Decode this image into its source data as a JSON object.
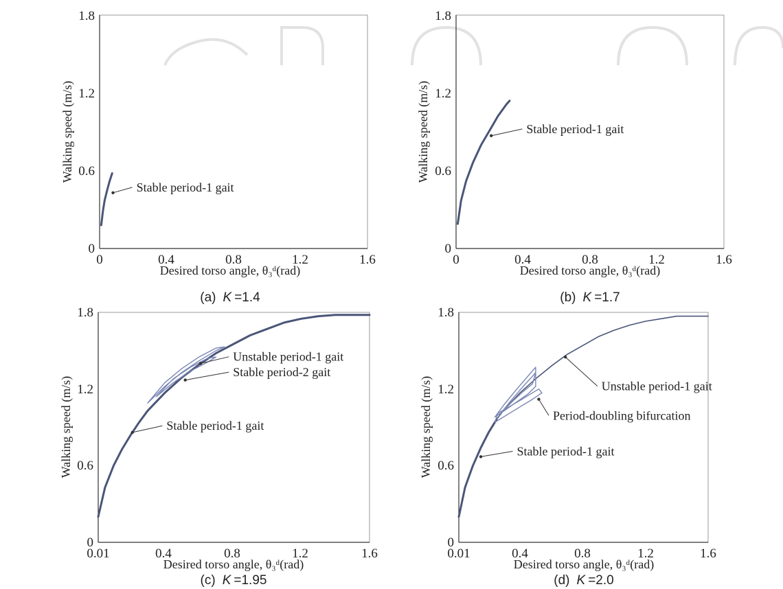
{
  "colors": {
    "curve": "#4a5578",
    "curve_light": "#7a86b4",
    "text": "#222222",
    "frame": "#9a9a9a",
    "watermark": "#e2e2e2"
  },
  "chart_data": [
    {
      "type": "line",
      "panel": "a",
      "caption_prefix": "(a)",
      "caption_k": "K",
      "caption_value": "=1.4",
      "xlabel": "Desired torso angle, θ₃ᵈ(rad)",
      "ylabel": "Walking speed (m/s)",
      "xlim": [
        0,
        1.6
      ],
      "ylim": [
        0,
        1.8
      ],
      "xticks": [
        0,
        0.4,
        0.8,
        1.2,
        1.6
      ],
      "xtick_labels": [
        "0",
        "0.4",
        "0.8",
        "1.2",
        "1.6"
      ],
      "yticks": [
        0,
        0.6,
        1.2,
        1.8
      ],
      "ytick_labels": [
        "0",
        "0.6",
        "1.2",
        "1.8"
      ],
      "series": [
        {
          "style": "stable",
          "x": [
            0.01,
            0.02,
            0.03,
            0.045,
            0.06,
            0.075
          ],
          "y": [
            0.18,
            0.29,
            0.37,
            0.45,
            0.52,
            0.58
          ]
        }
      ],
      "annotations": [
        {
          "text": "Stable period-1 gait",
          "tip": [
            0.08,
            0.43
          ],
          "text_pos": [
            0.22,
            0.44
          ]
        }
      ]
    },
    {
      "type": "line",
      "panel": "b",
      "caption_prefix": "(b)",
      "caption_k": "K",
      "caption_value": "=1.7",
      "xlabel": "Desired torso angle, θ₃ᵈ(rad)",
      "ylabel": "Walking speed (m/s)",
      "xlim": [
        0,
        1.6
      ],
      "ylim": [
        0,
        1.8
      ],
      "xticks": [
        0,
        0.4,
        0.8,
        1.2,
        1.6
      ],
      "xtick_labels": [
        "0",
        "0.4",
        "0.8",
        "1.2",
        "1.6"
      ],
      "yticks": [
        0,
        0.6,
        1.2,
        1.8
      ],
      "ytick_labels": [
        "0",
        "0.6",
        "1.2",
        "1.8"
      ],
      "series": [
        {
          "style": "stable",
          "x": [
            0.01,
            0.03,
            0.06,
            0.1,
            0.15,
            0.2,
            0.25,
            0.3,
            0.32
          ],
          "y": [
            0.19,
            0.37,
            0.52,
            0.66,
            0.8,
            0.91,
            1.02,
            1.11,
            1.14
          ]
        }
      ],
      "annotations": [
        {
          "text": "Stable period-1 gait",
          "tip": [
            0.21,
            0.87
          ],
          "text_pos": [
            0.42,
            0.89
          ]
        }
      ]
    },
    {
      "type": "line",
      "panel": "c",
      "caption_prefix": "(c)",
      "caption_k": "K",
      "caption_value": "=1.95",
      "xlabel": "Desired torso angle, θ₃ᵈ(rad)",
      "ylabel": "Walking speed (m/s)",
      "xlim": [
        0.01,
        1.6
      ],
      "ylim": [
        0,
        1.8
      ],
      "xticks": [
        0.01,
        0.4,
        0.8,
        1.2,
        1.6
      ],
      "xtick_labels": [
        "0.01",
        "0.4",
        "0.8",
        "1.2",
        "1.6"
      ],
      "yticks": [
        0,
        0.6,
        1.2,
        1.8
      ],
      "ytick_labels": [
        "0",
        "0.6",
        "1.2",
        "1.8"
      ],
      "series": [
        {
          "style": "stable",
          "x": [
            0.01,
            0.05,
            0.1,
            0.15,
            0.2,
            0.25,
            0.3,
            0.4,
            0.5,
            0.6,
            0.7,
            0.8,
            0.9,
            1.0,
            1.1,
            1.2,
            1.3,
            1.4,
            1.5,
            1.6
          ],
          "y": [
            0.2,
            0.43,
            0.6,
            0.73,
            0.84,
            0.94,
            1.03,
            1.17,
            1.29,
            1.39,
            1.48,
            1.55,
            1.62,
            1.67,
            1.72,
            1.75,
            1.77,
            1.78,
            1.78,
            1.78
          ]
        },
        {
          "style": "loop",
          "x": [
            0.3,
            0.4,
            0.5,
            0.6,
            0.7,
            0.75,
            0.7,
            0.6,
            0.5,
            0.4,
            0.3
          ],
          "y": [
            1.09,
            1.22,
            1.33,
            1.42,
            1.5,
            1.53,
            1.52,
            1.45,
            1.36,
            1.25,
            1.09
          ]
        },
        {
          "style": "loop",
          "x": [
            0.35,
            0.45,
            0.55,
            0.65,
            0.7,
            0.65,
            0.55,
            0.45,
            0.35
          ],
          "y": [
            1.14,
            1.25,
            1.34,
            1.41,
            1.45,
            1.44,
            1.37,
            1.28,
            1.14
          ]
        }
      ],
      "annotations": [
        {
          "text": "Unstable period-1 gait",
          "tip": [
            0.61,
            1.4
          ],
          "text_pos": [
            0.8,
            1.42
          ]
        },
        {
          "text": "Stable period-2 gait",
          "tip": [
            0.52,
            1.27
          ],
          "text_pos": [
            0.8,
            1.3
          ]
        },
        {
          "text": "Stable period-1 gait",
          "tip": [
            0.21,
            0.86
          ],
          "text_pos": [
            0.41,
            0.88
          ]
        }
      ]
    },
    {
      "type": "line",
      "panel": "d",
      "caption_prefix": "(d)",
      "caption_k": "K",
      "caption_value": "=2.0",
      "xlabel": "Desired torso angle, θ₃ᵈ(rad)",
      "ylabel": "Walking speed (m/s)",
      "xlim": [
        0.01,
        1.6
      ],
      "ylim": [
        0,
        1.8
      ],
      "xticks": [
        0.01,
        0.4,
        0.8,
        1.2,
        1.6
      ],
      "xtick_labels": [
        "0.01",
        "0.4",
        "0.8",
        "1.2",
        "1.6"
      ],
      "yticks": [
        0,
        0.6,
        1.2,
        1.8
      ],
      "ytick_labels": [
        "0",
        "0.6",
        "1.2",
        "1.8"
      ],
      "series": [
        {
          "style": "stable",
          "x": [
            0.01,
            0.05,
            0.1,
            0.15,
            0.2,
            0.25
          ],
          "y": [
            0.2,
            0.43,
            0.6,
            0.74,
            0.86,
            0.96
          ]
        },
        {
          "style": "unstable",
          "x": [
            0.25,
            0.3,
            0.4,
            0.5,
            0.6,
            0.7,
            0.8,
            0.9,
            1.0,
            1.1,
            1.2,
            1.3,
            1.4,
            1.5,
            1.6
          ],
          "y": [
            0.96,
            1.04,
            1.17,
            1.28,
            1.38,
            1.47,
            1.54,
            1.61,
            1.66,
            1.7,
            1.73,
            1.75,
            1.77,
            1.77,
            1.77
          ]
        },
        {
          "style": "loop",
          "x": [
            0.24,
            0.3,
            0.38,
            0.45,
            0.5,
            0.5,
            0.45,
            0.38,
            0.3,
            0.24
          ],
          "y": [
            0.98,
            1.08,
            1.2,
            1.3,
            1.37,
            1.22,
            1.16,
            1.1,
            1.03,
            0.98
          ]
        },
        {
          "style": "loop",
          "x": [
            0.27,
            0.35,
            0.42,
            0.48,
            0.5,
            0.48,
            0.42,
            0.35,
            0.27
          ],
          "y": [
            1.0,
            1.12,
            1.22,
            1.3,
            1.33,
            1.24,
            1.18,
            1.1,
            1.0
          ]
        },
        {
          "style": "loop",
          "x": [
            0.26,
            0.4,
            0.52,
            0.54,
            0.48,
            0.36,
            0.24,
            0.26
          ],
          "y": [
            1.01,
            1.11,
            1.2,
            1.17,
            1.12,
            1.03,
            0.94,
            1.01
          ]
        }
      ],
      "annotations": [
        {
          "text": "Unstable period-1 gait",
          "tip": [
            0.69,
            1.45
          ],
          "text_pos": [
            0.92,
            1.19
          ]
        },
        {
          "text": "Period-doubling bifurcation",
          "tip": [
            0.52,
            1.12
          ],
          "text_pos": [
            0.61,
            0.96
          ]
        },
        {
          "text": "Stable period-1 gait",
          "tip": [
            0.15,
            0.67
          ],
          "text_pos": [
            0.38,
            0.68
          ]
        }
      ]
    }
  ]
}
